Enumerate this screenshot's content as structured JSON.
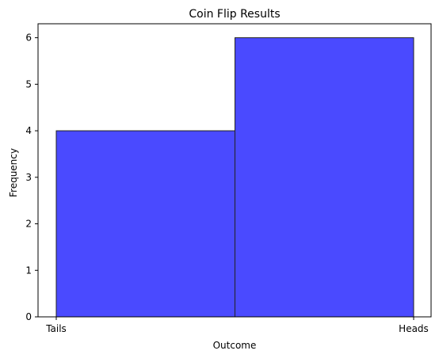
{
  "chart_data": {
    "type": "bar",
    "title": "Coin Flip Results",
    "xlabel": "Outcome",
    "ylabel": "Frequency",
    "categories": [
      "Tails",
      "Heads"
    ],
    "values": [
      4,
      6
    ],
    "ylim": [
      0,
      6.3
    ],
    "yticks": [
      0,
      1,
      2,
      3,
      4,
      5,
      6
    ],
    "grid": false,
    "legend": "none",
    "bar_color": "#4a4aff",
    "bar_edge_color": "#222222"
  }
}
